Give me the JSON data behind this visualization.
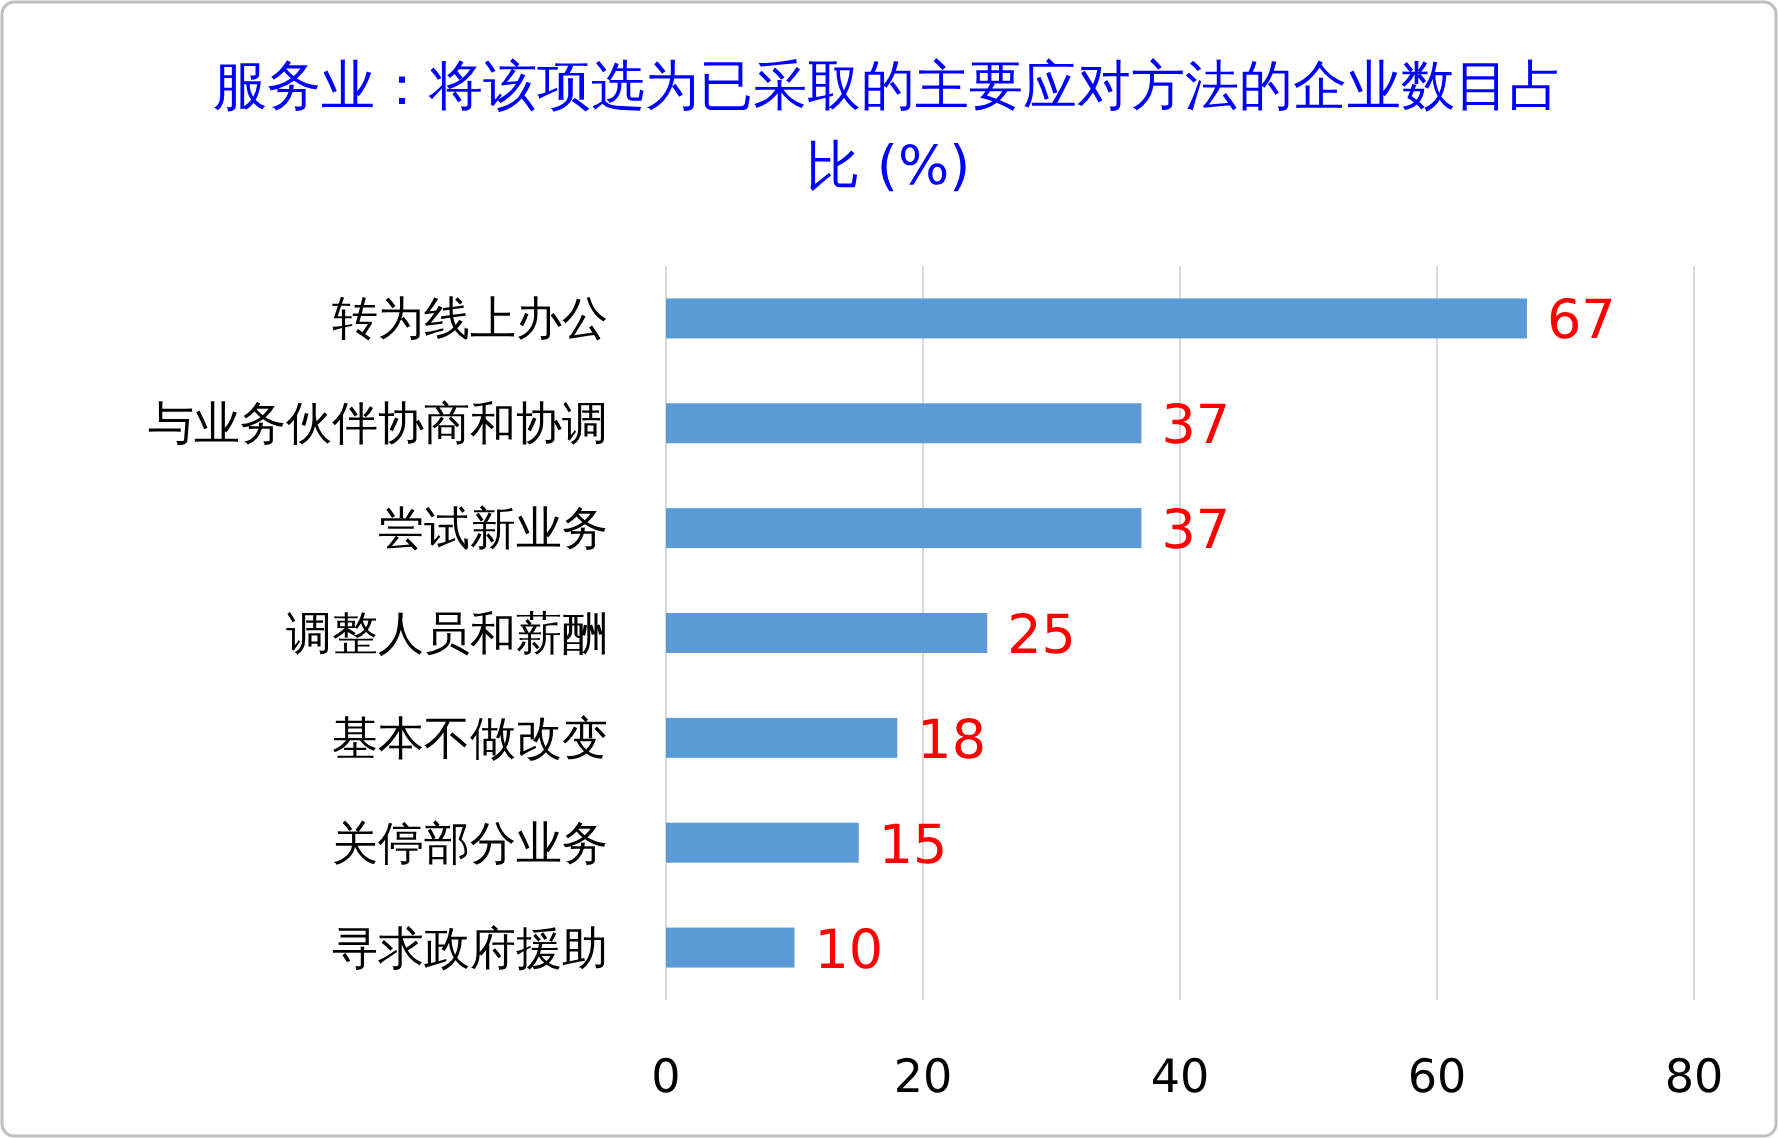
{
  "chart_data": {
    "type": "bar",
    "orientation": "horizontal",
    "title": "服务业：将该项选为已采取的主要应对方法的企业数目占比 (%)",
    "categories": [
      "转为线上办公",
      "与业务伙伴协商和协调",
      "尝试新业务",
      "调整人员和薪酬",
      "基本不做改变",
      "关停部分业务",
      "寻求政府援助"
    ],
    "values": [
      67,
      37,
      37,
      25,
      18,
      15,
      10
    ],
    "color": "#5b9bd5",
    "xlim": [
      0,
      80
    ],
    "xticks": [
      0,
      20,
      40,
      60,
      80
    ],
    "grid": "x",
    "data_labels": true
  }
}
